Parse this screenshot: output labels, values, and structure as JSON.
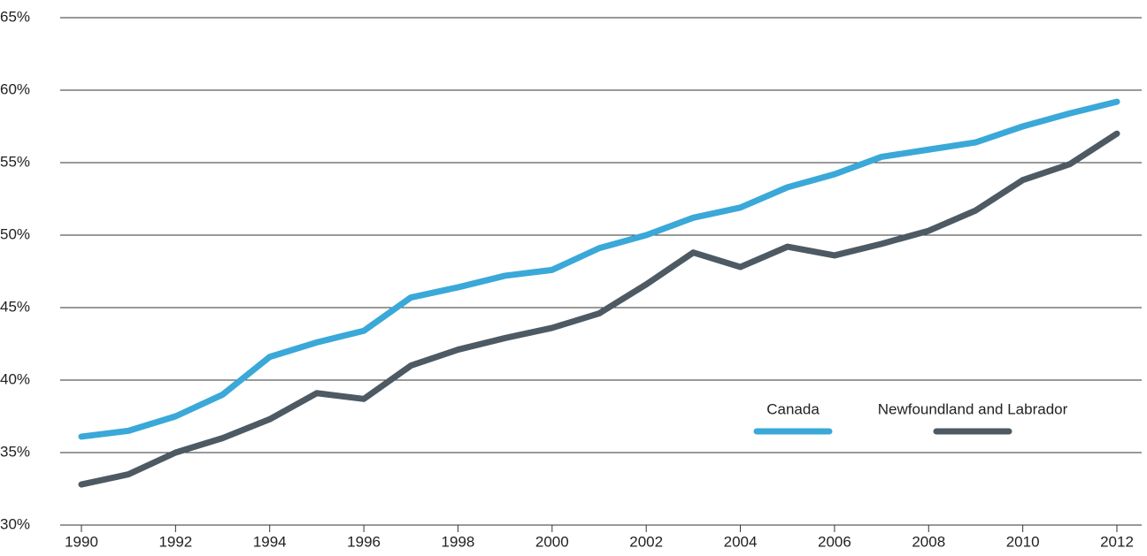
{
  "chart_data": {
    "type": "line",
    "x": [
      1990,
      1991,
      1992,
      1993,
      1994,
      1995,
      1996,
      1997,
      1998,
      1999,
      2000,
      2001,
      2002,
      2003,
      2004,
      2005,
      2006,
      2007,
      2008,
      2009,
      2010,
      2011,
      2012
    ],
    "series": [
      {
        "name": "Canada",
        "color": "#3aa8d8",
        "values": [
          36.1,
          36.5,
          37.5,
          39.0,
          41.6,
          42.6,
          43.4,
          45.7,
          46.4,
          47.2,
          47.6,
          49.1,
          50.0,
          51.2,
          51.9,
          53.3,
          54.2,
          55.4,
          55.9,
          56.4,
          57.5,
          58.4,
          59.2
        ]
      },
      {
        "name": "Newfoundland and Labrador",
        "color": "#4d5a63",
        "values": [
          32.8,
          33.5,
          35.0,
          36.0,
          37.3,
          39.1,
          38.7,
          41.0,
          42.1,
          42.9,
          43.6,
          44.6,
          46.6,
          48.8,
          47.8,
          49.2,
          48.6,
          49.4,
          50.3,
          51.7,
          53.8,
          54.9,
          57.0
        ]
      }
    ],
    "xlim": [
      1990,
      2012
    ],
    "xticks": [
      1990,
      1992,
      1994,
      1996,
      1998,
      2000,
      2002,
      2004,
      2006,
      2008,
      2010,
      2012
    ],
    "ylim": [
      30,
      65
    ],
    "yticks": [
      {
        "value": 30,
        "label": "30%"
      },
      {
        "value": 35,
        "label": "35%"
      },
      {
        "value": 40,
        "label": "40%"
      },
      {
        "value": 45,
        "label": "45%"
      },
      {
        "value": 50,
        "label": "50%"
      },
      {
        "value": 55,
        "label": "55%"
      },
      {
        "value": 60,
        "label": "60%"
      },
      {
        "value": 65,
        "label": "65%"
      }
    ],
    "grid": true,
    "legend": "lower right"
  }
}
